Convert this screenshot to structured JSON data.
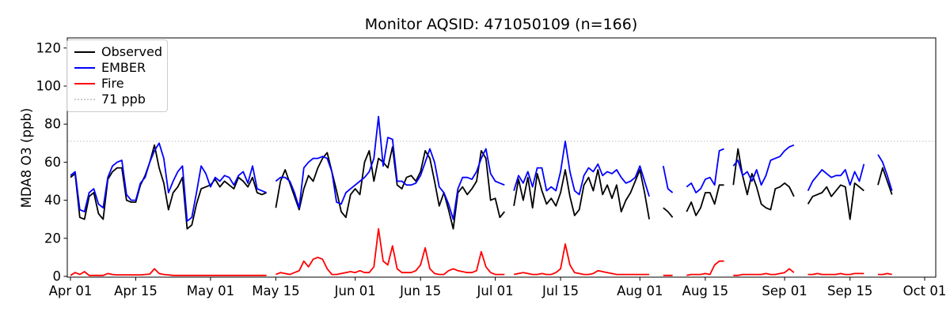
{
  "window": {
    "title": "Monitor AQSID: 471050109 (n=166)"
  },
  "chart_data": {
    "type": "line",
    "title": "Monitor AQSID: 471050109 (n=166)",
    "xlabel": "",
    "ylabel": "MDA8 O3 (ppb)",
    "n_points": 166,
    "grid": false,
    "background": "#ffffff",
    "x_start_date": "Apr 01",
    "x_end_date": "Oct 01",
    "x_total_days": 183,
    "x_ticks": [
      {
        "label": "Apr 01",
        "day": 0
      },
      {
        "label": "Apr 15",
        "day": 14
      },
      {
        "label": "May 01",
        "day": 30
      },
      {
        "label": "May 15",
        "day": 44
      },
      {
        "label": "Jun 01",
        "day": 61
      },
      {
        "label": "Jun 15",
        "day": 75
      },
      {
        "label": "Jul 01",
        "day": 91
      },
      {
        "label": "Jul 15",
        "day": 105
      },
      {
        "label": "Aug 01",
        "day": 122
      },
      {
        "label": "Aug 15",
        "day": 136
      },
      {
        "label": "Sep 01",
        "day": 153
      },
      {
        "label": "Sep 15",
        "day": 167
      },
      {
        "label": "Oct 01",
        "day": 183
      }
    ],
    "y_ticks": [
      0,
      20,
      40,
      60,
      80,
      100,
      120
    ],
    "ylim": [
      -1,
      125.3
    ],
    "threshold": {
      "value": 71,
      "label": "71 ppb",
      "color": "#cccccc",
      "style": "dotted"
    },
    "legend": {
      "position": "upper-left",
      "items": [
        {
          "label": "Observed",
          "color": "#000000",
          "style": "solid"
        },
        {
          "label": "EMBER",
          "color": "#0000ff",
          "style": "solid"
        },
        {
          "label": "Fire",
          "color": "#ff0000",
          "style": "solid"
        },
        {
          "label": "71 ppb",
          "color": "#cccccc",
          "style": "dotted"
        }
      ]
    },
    "series": [
      {
        "name": "Observed",
        "color": "#000000",
        "values": [
          52,
          54,
          31,
          30,
          42,
          44,
          33,
          30,
          51,
          55,
          57,
          57,
          40,
          39,
          39,
          48,
          53,
          60,
          69,
          57,
          49,
          35,
          44,
          47,
          52,
          25,
          27,
          38,
          46,
          47,
          48,
          51,
          47,
          50,
          48,
          46,
          52,
          50,
          47,
          52,
          44,
          43,
          44,
          null,
          36,
          50,
          56,
          49,
          42,
          35,
          46,
          53,
          50,
          57,
          62,
          65,
          55,
          45,
          34,
          31,
          43,
          46,
          43,
          60,
          66,
          50,
          62,
          60,
          57,
          68,
          48,
          46,
          52,
          53,
          50,
          55,
          66,
          62,
          50,
          37,
          44,
          35,
          25,
          44,
          47,
          43,
          46,
          50,
          66,
          62,
          40,
          41,
          31,
          34,
          null,
          37,
          51,
          40,
          52,
          36,
          54,
          45,
          38,
          41,
          37,
          44,
          56,
          42,
          32,
          35,
          48,
          52,
          45,
          56,
          43,
          48,
          41,
          48,
          34,
          40,
          44,
          50,
          56,
          44,
          30,
          null,
          null,
          36,
          34,
          31,
          null,
          null,
          34,
          39,
          32,
          36,
          44,
          44,
          38,
          48,
          48,
          null,
          48,
          67,
          53,
          43,
          54,
          47,
          38,
          36,
          35,
          46,
          47,
          49,
          47,
          42,
          null,
          null,
          38,
          42,
          43,
          44,
          47,
          42,
          45,
          48,
          47,
          30,
          49,
          47,
          45,
          null,
          null,
          48,
          57,
          50,
          43,
          null,
          null,
          null,
          null,
          null,
          null
        ]
      },
      {
        "name": "EMBER",
        "color": "#0000ff",
        "values": [
          53,
          55,
          35,
          34,
          44,
          46,
          38,
          36,
          52,
          58,
          60,
          61,
          43,
          40,
          40,
          49,
          52,
          60,
          66,
          70,
          62,
          44,
          50,
          55,
          58,
          29,
          31,
          44,
          58,
          54,
          47,
          52,
          50,
          53,
          52,
          48,
          53,
          55,
          49,
          58,
          46,
          45,
          44,
          null,
          50,
          52,
          52,
          50,
          44,
          36,
          57,
          60,
          62,
          62,
          63,
          62,
          55,
          39,
          38,
          44,
          46,
          48,
          50,
          52,
          55,
          62,
          84,
          58,
          73,
          72,
          50,
          50,
          48,
          48,
          49,
          53,
          60,
          67,
          60,
          47,
          44,
          38,
          30,
          46,
          52,
          52,
          51,
          55,
          62,
          67,
          54,
          50,
          49,
          48,
          null,
          45,
          53,
          49,
          55,
          47,
          57,
          57,
          45,
          47,
          45,
          55,
          71,
          55,
          45,
          43,
          53,
          57,
          55,
          59,
          53,
          55,
          54,
          56,
          52,
          49,
          50,
          52,
          58,
          50,
          42,
          null,
          null,
          58,
          46,
          44,
          null,
          null,
          47,
          49,
          44,
          46,
          51,
          52,
          48,
          66,
          67,
          null,
          58,
          61,
          53,
          55,
          50,
          56,
          48,
          53,
          61,
          62,
          63,
          66,
          68,
          69,
          null,
          null,
          45,
          50,
          53,
          56,
          54,
          52,
          53,
          53,
          56,
          48,
          55,
          50,
          59,
          null,
          null,
          64,
          60,
          53,
          45,
          null,
          null,
          null,
          null,
          null,
          null
        ]
      },
      {
        "name": "Fire",
        "color": "#ff0000",
        "values": [
          0.5,
          2,
          1,
          2.5,
          0.5,
          0.5,
          0.5,
          0.5,
          1.5,
          1,
          0.8,
          0.8,
          0.8,
          0.8,
          0.8,
          0.8,
          1,
          1.2,
          4,
          1.5,
          1,
          0.8,
          0.5,
          0.5,
          0.5,
          0.5,
          0.5,
          0.5,
          0.5,
          0.5,
          0.5,
          0.5,
          0.5,
          0.5,
          0.5,
          0.5,
          0.5,
          0.5,
          0.5,
          0.5,
          0.5,
          0.5,
          0.5,
          null,
          1,
          2,
          1.5,
          1,
          2,
          3,
          8,
          5,
          9,
          10,
          9,
          4,
          1,
          1,
          1.5,
          2,
          2.5,
          2,
          3,
          2,
          2,
          5,
          25,
          8,
          6,
          16,
          4,
          2,
          2,
          2,
          3,
          6,
          15,
          4,
          1.5,
          1,
          1,
          3,
          4,
          3,
          2.5,
          2,
          2,
          3,
          13,
          5,
          2,
          1,
          1,
          1,
          null,
          1,
          1.5,
          2,
          1.5,
          1,
          1,
          1.5,
          1,
          1,
          2,
          4,
          17,
          6,
          2,
          1.5,
          1,
          1,
          1.5,
          3,
          2.5,
          2,
          1.5,
          1,
          1,
          1,
          1,
          1,
          1,
          1,
          1,
          null,
          null,
          0.5,
          0.5,
          0.5,
          null,
          null,
          0.5,
          1,
          1,
          1,
          1.5,
          1,
          6,
          8,
          8,
          null,
          0.5,
          0.5,
          1,
          1,
          1,
          1,
          1,
          1.5,
          1,
          1,
          1.5,
          2,
          4,
          2,
          null,
          null,
          1,
          1,
          1.5,
          1,
          1,
          1,
          1,
          1.5,
          1,
          1,
          1.5,
          1.5,
          1.5,
          null,
          null,
          1,
          1,
          1.5,
          1,
          null,
          null,
          null,
          null,
          null,
          null
        ]
      }
    ]
  }
}
